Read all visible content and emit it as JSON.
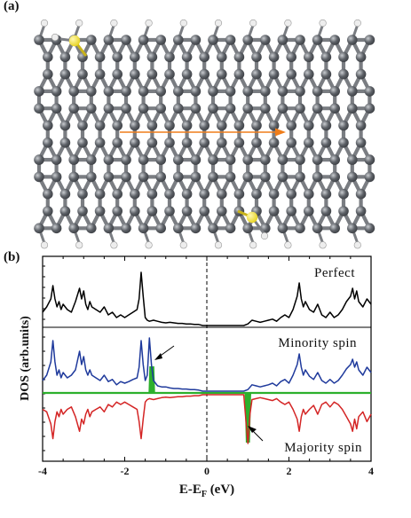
{
  "panel_a": {
    "label": "(a)"
  },
  "panel_b": {
    "label": "(b)"
  },
  "colors": {
    "carbon": "#5e6268",
    "carbon_edge": "#3c3f44",
    "bond": "#7a7d82",
    "hydrogen": "#ededed",
    "sulfur": "#e6d21e",
    "arrow": "#ef7d1a",
    "perfect": "#000000",
    "minority": "#1f3a9c",
    "majority": "#d42525",
    "peak_fill": "#2cb02c",
    "annot_arrow": "#000000",
    "zero_line": "#000000"
  },
  "chart_data": {
    "type": "line",
    "xlabel": "E-E",
    "xlabel_sub": "F",
    "xlabel_unit": "(eV)",
    "ylabel": "DOS (arb.units)",
    "xlim": [
      -4,
      4
    ],
    "xticks": [
      "-4",
      "-2",
      "0",
      "2",
      "4"
    ],
    "fermi_line": 0,
    "series": [
      {
        "name": "Perfect",
        "x": [
          -4.0,
          -3.9,
          -3.8,
          -3.75,
          -3.7,
          -3.65,
          -3.6,
          -3.55,
          -3.5,
          -3.4,
          -3.3,
          -3.2,
          -3.1,
          -3.05,
          -3.0,
          -2.95,
          -2.9,
          -2.85,
          -2.8,
          -2.7,
          -2.6,
          -2.5,
          -2.4,
          -2.3,
          -2.2,
          -2.1,
          -2.0,
          -1.9,
          -1.8,
          -1.7,
          -1.65,
          -1.6,
          -1.55,
          -1.5,
          -1.45,
          -1.4,
          -1.3,
          -1.2,
          -1.1,
          -1.0,
          -0.9,
          -0.8,
          -0.7,
          -0.6,
          -0.5,
          -0.4,
          -0.3,
          -0.2,
          -0.1,
          0.0,
          0.2,
          0.4,
          0.6,
          0.8,
          0.9,
          1.0,
          1.1,
          1.2,
          1.3,
          1.4,
          1.5,
          1.6,
          1.7,
          1.8,
          1.9,
          2.0,
          2.1,
          2.2,
          2.25,
          2.3,
          2.35,
          2.4,
          2.5,
          2.6,
          2.7,
          2.8,
          2.9,
          3.0,
          3.1,
          3.2,
          3.3,
          3.4,
          3.5,
          3.55,
          3.6,
          3.65,
          3.7,
          3.8,
          3.9,
          4.0
        ],
        "y": [
          0.25,
          0.35,
          0.5,
          0.75,
          0.5,
          0.35,
          0.45,
          0.3,
          0.4,
          0.3,
          0.25,
          0.45,
          0.7,
          0.5,
          0.65,
          0.4,
          0.3,
          0.45,
          0.35,
          0.3,
          0.25,
          0.35,
          0.2,
          0.25,
          0.15,
          0.2,
          0.15,
          0.2,
          0.25,
          0.3,
          0.5,
          1.0,
          0.55,
          0.15,
          0.1,
          0.08,
          0.1,
          0.08,
          0.06,
          0.05,
          0.06,
          0.05,
          0.04,
          0.04,
          0.03,
          0.03,
          0.02,
          0.02,
          0.0,
          0.0,
          0.0,
          0.0,
          0.0,
          0.0,
          0.0,
          0.03,
          0.1,
          0.08,
          0.06,
          0.08,
          0.1,
          0.12,
          0.08,
          0.15,
          0.2,
          0.15,
          0.3,
          0.55,
          0.8,
          0.5,
          0.35,
          0.45,
          0.3,
          0.25,
          0.4,
          0.2,
          0.15,
          0.25,
          0.15,
          0.2,
          0.3,
          0.45,
          0.55,
          0.7,
          0.5,
          0.65,
          0.45,
          0.35,
          0.5,
          0.4
        ]
      },
      {
        "name": "Minority spin",
        "x": [
          -4.0,
          -3.9,
          -3.8,
          -3.75,
          -3.7,
          -3.65,
          -3.6,
          -3.55,
          -3.5,
          -3.4,
          -3.3,
          -3.2,
          -3.1,
          -3.05,
          -3.0,
          -2.95,
          -2.9,
          -2.85,
          -2.8,
          -2.7,
          -2.6,
          -2.5,
          -2.4,
          -2.3,
          -2.2,
          -2.1,
          -2.0,
          -1.9,
          -1.8,
          -1.7,
          -1.65,
          -1.6,
          -1.55,
          -1.5,
          -1.45,
          -1.4,
          -1.35,
          -1.3,
          -1.25,
          -1.2,
          -1.1,
          -1.0,
          -0.9,
          -0.8,
          -0.7,
          -0.6,
          -0.5,
          -0.4,
          -0.3,
          -0.2,
          -0.1,
          0.0,
          0.2,
          0.4,
          0.6,
          0.8,
          0.9,
          1.0,
          1.1,
          1.2,
          1.3,
          1.4,
          1.5,
          1.6,
          1.7,
          1.8,
          1.9,
          2.0,
          2.1,
          2.2,
          2.25,
          2.3,
          2.35,
          2.4,
          2.5,
          2.6,
          2.7,
          2.8,
          2.9,
          3.0,
          3.1,
          3.2,
          3.3,
          3.4,
          3.5,
          3.55,
          3.6,
          3.65,
          3.7,
          3.8,
          3.9,
          4.0
        ],
        "y": [
          0.2,
          0.3,
          0.55,
          0.95,
          0.55,
          0.3,
          0.4,
          0.25,
          0.35,
          0.25,
          0.3,
          0.4,
          0.75,
          0.5,
          0.65,
          0.4,
          0.3,
          0.4,
          0.3,
          0.25,
          0.2,
          0.3,
          0.18,
          0.22,
          0.12,
          0.18,
          0.15,
          0.18,
          0.22,
          0.25,
          0.45,
          0.95,
          0.5,
          0.2,
          0.3,
          1.0,
          0.5,
          0.2,
          0.15,
          0.1,
          0.08,
          0.08,
          0.06,
          0.05,
          0.05,
          0.04,
          0.04,
          0.03,
          0.03,
          0.02,
          0.0,
          0.0,
          0.0,
          0.0,
          0.0,
          0.0,
          0.0,
          0.03,
          0.12,
          0.1,
          0.08,
          0.1,
          0.12,
          0.15,
          0.1,
          0.18,
          0.22,
          0.15,
          0.3,
          0.5,
          0.7,
          0.45,
          0.3,
          0.4,
          0.28,
          0.22,
          0.35,
          0.2,
          0.15,
          0.22,
          0.15,
          0.2,
          0.3,
          0.42,
          0.5,
          0.6,
          0.45,
          0.55,
          0.4,
          0.3,
          0.45,
          0.35
        ]
      },
      {
        "name": "Majority spin",
        "x": [
          -4.0,
          -3.9,
          -3.8,
          -3.75,
          -3.7,
          -3.65,
          -3.6,
          -3.55,
          -3.5,
          -3.4,
          -3.3,
          -3.2,
          -3.1,
          -3.05,
          -3.0,
          -2.95,
          -2.9,
          -2.85,
          -2.8,
          -2.7,
          -2.6,
          -2.5,
          -2.4,
          -2.3,
          -2.2,
          -2.1,
          -2.0,
          -1.9,
          -1.8,
          -1.7,
          -1.65,
          -1.6,
          -1.55,
          -1.5,
          -1.45,
          -1.4,
          -1.3,
          -1.2,
          -1.1,
          -1.0,
          -0.9,
          -0.8,
          -0.7,
          -0.6,
          -0.5,
          -0.4,
          -0.3,
          -0.2,
          -0.1,
          0.0,
          0.2,
          0.4,
          0.6,
          0.8,
          0.9,
          0.95,
          1.0,
          1.05,
          1.1,
          1.2,
          1.3,
          1.4,
          1.5,
          1.6,
          1.7,
          1.8,
          1.9,
          2.0,
          2.1,
          2.2,
          2.25,
          2.3,
          2.35,
          2.4,
          2.5,
          2.6,
          2.7,
          2.8,
          2.9,
          3.0,
          3.1,
          3.2,
          3.3,
          3.4,
          3.5,
          3.55,
          3.6,
          3.65,
          3.7,
          3.8,
          3.9,
          4.0
        ],
        "y": [
          -0.3,
          -0.35,
          -0.6,
          -0.9,
          -0.55,
          -0.35,
          -0.45,
          -0.3,
          -0.4,
          -0.3,
          -0.25,
          -0.45,
          -0.75,
          -0.5,
          -0.6,
          -0.4,
          -0.3,
          -0.45,
          -0.35,
          -0.3,
          -0.25,
          -0.35,
          -0.2,
          -0.25,
          -0.15,
          -0.2,
          -0.15,
          -0.2,
          -0.25,
          -0.3,
          -0.55,
          -0.9,
          -0.5,
          -0.15,
          -0.1,
          -0.08,
          -0.1,
          -0.08,
          -0.06,
          -0.05,
          -0.06,
          -0.05,
          -0.04,
          -0.04,
          -0.03,
          -0.03,
          -0.02,
          -0.02,
          0.0,
          0.0,
          0.0,
          0.0,
          0.0,
          0.0,
          0.0,
          -0.5,
          -1.0,
          -0.4,
          -0.1,
          -0.08,
          -0.06,
          -0.08,
          -0.1,
          -0.12,
          -0.08,
          -0.15,
          -0.2,
          -0.15,
          -0.3,
          -0.5,
          -0.75,
          -0.45,
          -0.3,
          -0.4,
          -0.3,
          -0.22,
          -0.4,
          -0.2,
          -0.15,
          -0.25,
          -0.15,
          -0.2,
          -0.3,
          -0.45,
          -0.6,
          -0.75,
          -0.5,
          -0.7,
          -0.45,
          -0.35,
          -0.55,
          -0.4
        ]
      }
    ],
    "annotations": [
      "Perfect",
      "Minority spin",
      "Majority spin"
    ]
  }
}
